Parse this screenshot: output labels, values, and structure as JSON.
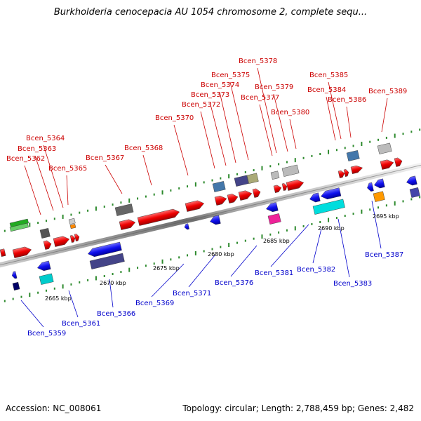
{
  "title": "Burkholderia cenocepacia AU 1054 chromosome 2, complete sequ...",
  "footer": {
    "accession": "Accession: NC_008061",
    "topology": "Topology: circular; Length: 2,788,459 bp; Genes: 2,482"
  },
  "colors": {
    "forward_label": "#cc0000",
    "reverse_label": "#0000cc",
    "backbone": "#8a8a8a",
    "tick_dot": "#2d8a2d"
  },
  "forward_labels": [
    "Bcen_5362",
    "Bcen_5363",
    "Bcen_5364",
    "Bcen_5365",
    "Bcen_5367",
    "Bcen_5368",
    "Bcen_5370",
    "Bcen_5372",
    "Bcen_5373",
    "Bcen_5374",
    "Bcen_5375",
    "Bcen_5377",
    "Bcen_5378",
    "Bcen_5379",
    "Bcen_5380",
    "Bcen_5384",
    "Bcen_5385",
    "Bcen_5386",
    "Bcen_5389"
  ],
  "reverse_labels": [
    "Bcen_5359",
    "Bcen_5361",
    "Bcen_5366",
    "Bcen_5369",
    "Bcen_5371",
    "Bcen_5376",
    "Bcen_5381",
    "Bcen_5382",
    "Bcen_5383",
    "Bcen_5387"
  ],
  "ticks": [
    "2665 kbp",
    "2670 kbp",
    "2675 kbp",
    "2680 kbp",
    "2685 kbp",
    "2690 kbp",
    "2695 kbp"
  ]
}
